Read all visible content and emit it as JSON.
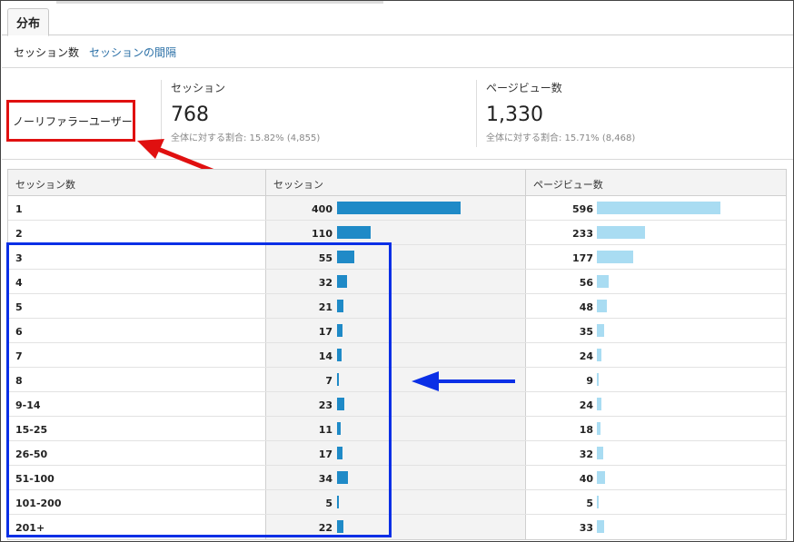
{
  "tabs": [
    {
      "label": "分布"
    }
  ],
  "subnav": {
    "active": "セッション数",
    "link": "セッションの間隔"
  },
  "segment": {
    "label": "ノーリファラーユーザー"
  },
  "metrics": [
    {
      "name": "セッション",
      "value": "768",
      "sub": "全体に対する割合: 15.82% (4,855)"
    },
    {
      "name": "ページビュー数",
      "value": "1,330",
      "sub": "全体に対する割合: 15.71% (8,468)"
    }
  ],
  "table": {
    "headers": [
      "セッション数",
      "セッション",
      "ページビュー数"
    ],
    "rows": [
      {
        "label": "1",
        "sessions": 400,
        "pageviews": 596
      },
      {
        "label": "2",
        "sessions": 110,
        "pageviews": 233
      },
      {
        "label": "3",
        "sessions": 55,
        "pageviews": 177
      },
      {
        "label": "4",
        "sessions": 32,
        "pageviews": 56
      },
      {
        "label": "5",
        "sessions": 21,
        "pageviews": 48
      },
      {
        "label": "6",
        "sessions": 17,
        "pageviews": 35
      },
      {
        "label": "7",
        "sessions": 14,
        "pageviews": 24
      },
      {
        "label": "8",
        "sessions": 7,
        "pageviews": 9
      },
      {
        "label": "9-14",
        "sessions": 23,
        "pageviews": 24
      },
      {
        "label": "15-25",
        "sessions": 11,
        "pageviews": 18
      },
      {
        "label": "26-50",
        "sessions": 17,
        "pageviews": 32
      },
      {
        "label": "51-100",
        "sessions": 34,
        "pageviews": 40
      },
      {
        "label": "101-200",
        "sessions": 5,
        "pageviews": 5
      },
      {
        "label": "201+",
        "sessions": 22,
        "pageviews": 33
      }
    ]
  },
  "colors": {
    "session_bar": "#1f8ac7",
    "pageview_bar": "#a9dcf2",
    "highlight_red": "#e01010",
    "highlight_blue": "#0a2fe6"
  },
  "icons": [
    "red-arrow-icon",
    "blue-arrow-icon"
  ]
}
